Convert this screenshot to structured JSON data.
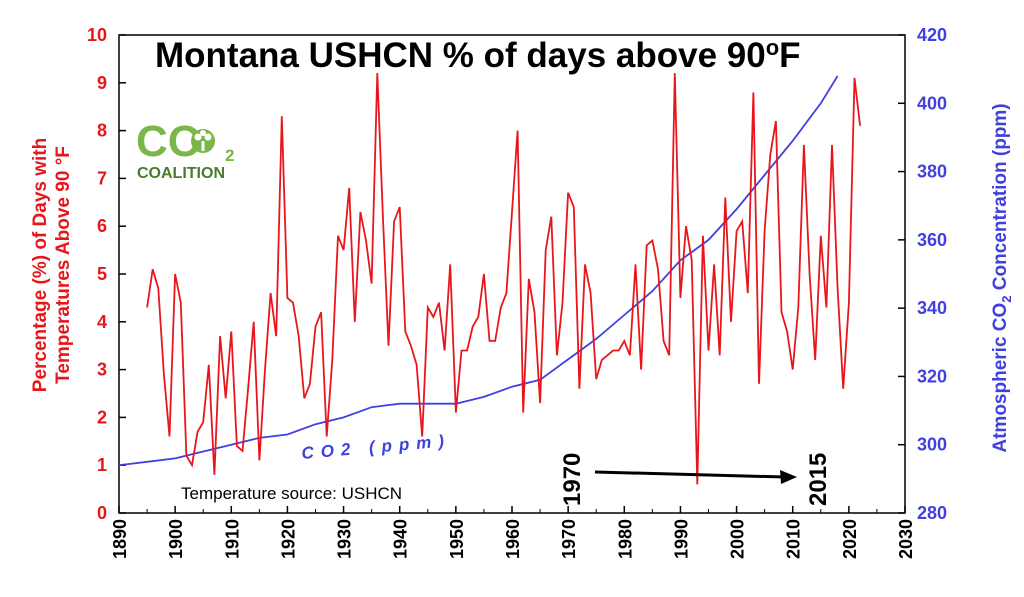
{
  "chart_data": {
    "type": "line",
    "title_main": "Montana USHCN % of days above 90",
    "title_suffix_o": "o",
    "title_suffix_f": "F",
    "x": {
      "min": 1890,
      "max": 2030,
      "ticks": [
        1890,
        1900,
        1910,
        1920,
        1930,
        1940,
        1950,
        1960,
        1970,
        1980,
        1990,
        2000,
        2010,
        2020,
        2030
      ],
      "tick_labels": [
        "1890",
        "1900",
        "1910",
        "1920",
        "1930",
        "1940",
        "1950",
        "1960",
        "1970",
        "1980",
        "1990",
        "2000",
        "2010",
        "2020",
        "2030"
      ]
    },
    "y_left": {
      "min": 0,
      "max": 10,
      "ticks": [
        0,
        1,
        2,
        3,
        4,
        5,
        6,
        7,
        8,
        9,
        10
      ],
      "tick_labels": [
        "0",
        "1",
        "2",
        "3",
        "4",
        "5",
        "6",
        "7",
        "8",
        "9",
        "10"
      ],
      "label_line1": "Percentage (%) of Days with",
      "label_line2": "Temperatures Above 90 °F",
      "color": "#e8161b"
    },
    "y_right": {
      "min": 280,
      "max": 420,
      "ticks": [
        280,
        300,
        320,
        340,
        360,
        380,
        400,
        420
      ],
      "tick_labels": [
        "280",
        "300",
        "320",
        "340",
        "360",
        "380",
        "400",
        "420"
      ],
      "label_pre": "Atmospheric CO",
      "label_sub": "2",
      "label_post": " Concentration (ppm)",
      "color": "#4040e0"
    },
    "grid": false,
    "series": [
      {
        "name": "% days above 90 °F",
        "color": "#e8161b",
        "axis": "left",
        "x": [
          1895,
          1896,
          1897,
          1898,
          1899,
          1900,
          1901,
          1902,
          1903,
          1904,
          1905,
          1906,
          1907,
          1908,
          1909,
          1910,
          1911,
          1912,
          1913,
          1914,
          1915,
          1916,
          1917,
          1918,
          1919,
          1920,
          1921,
          1922,
          1923,
          1924,
          1925,
          1926,
          1927,
          1928,
          1929,
          1930,
          1931,
          1932,
          1933,
          1934,
          1935,
          1936,
          1937,
          1938,
          1939,
          1940,
          1941,
          1942,
          1943,
          1944,
          1945,
          1946,
          1947,
          1948,
          1949,
          1950,
          1951,
          1952,
          1953,
          1954,
          1955,
          1956,
          1957,
          1958,
          1959,
          1960,
          1961,
          1962,
          1963,
          1964,
          1965,
          1966,
          1967,
          1968,
          1969,
          1970,
          1971,
          1972,
          1973,
          1974,
          1975,
          1976,
          1977,
          1978,
          1979,
          1980,
          1981,
          1982,
          1983,
          1984,
          1985,
          1986,
          1987,
          1988,
          1989,
          1990,
          1991,
          1992,
          1993,
          1994,
          1995,
          1996,
          1997,
          1998,
          1999,
          2000,
          2001,
          2002,
          2003,
          2004,
          2005,
          2006,
          2007,
          2008,
          2009,
          2010,
          2011,
          2012,
          2013,
          2014,
          2015,
          2016,
          2017,
          2018,
          2019,
          2020,
          2021,
          2022
        ],
        "values": [
          4.3,
          5.1,
          4.7,
          2.9,
          1.6,
          5.0,
          4.4,
          1.2,
          1.0,
          1.7,
          1.9,
          3.1,
          0.8,
          3.7,
          2.4,
          3.8,
          1.4,
          1.3,
          2.6,
          4.0,
          1.1,
          3.0,
          4.6,
          3.7,
          8.3,
          4.5,
          4.4,
          3.7,
          2.4,
          2.7,
          3.9,
          4.2,
          1.6,
          3.2,
          5.8,
          5.5,
          6.8,
          4.0,
          6.3,
          5.7,
          4.8,
          9.2,
          6.2,
          3.5,
          6.1,
          6.4,
          3.8,
          3.5,
          3.1,
          1.6,
          4.3,
          4.1,
          4.4,
          3.4,
          5.2,
          2.1,
          3.4,
          3.4,
          3.9,
          4.1,
          5.0,
          3.6,
          3.6,
          4.3,
          4.6,
          6.3,
          8.0,
          2.1,
          4.9,
          4.2,
          2.3,
          5.5,
          6.2,
          3.3,
          4.4,
          6.7,
          6.4,
          2.6,
          5.2,
          4.6,
          2.8,
          3.2,
          3.3,
          3.4,
          3.4,
          3.6,
          3.3,
          5.2,
          3.0,
          5.6,
          5.7,
          5.1,
          3.6,
          3.3,
          9.2,
          4.5,
          6.0,
          5.3,
          0.6,
          5.8,
          3.4,
          5.2,
          3.3,
          6.6,
          4.0,
          5.9,
          6.1,
          4.6,
          8.8,
          2.7,
          5.9,
          7.5,
          8.2,
          4.2,
          3.8,
          3.0,
          4.3,
          7.7,
          5.0,
          3.2,
          5.8,
          4.3,
          7.7,
          4.7,
          2.6,
          4.4,
          9.1,
          8.1
        ]
      },
      {
        "name": "CO2 (ppm)",
        "color": "#4040e0",
        "axis": "right",
        "x": [
          1890,
          1895,
          1900,
          1905,
          1910,
          1915,
          1920,
          1925,
          1930,
          1935,
          1940,
          1945,
          1950,
          1955,
          1960,
          1965,
          1970,
          1975,
          1980,
          1985,
          1990,
          1995,
          2000,
          2005,
          2010,
          2015,
          2018
        ],
        "values": [
          294,
          295,
          296,
          298,
          300,
          302,
          303,
          306,
          308,
          311,
          312,
          312,
          312,
          314,
          317,
          319,
          325,
          331,
          338,
          345,
          354,
          360,
          369,
          379,
          389,
          400,
          408
        ]
      }
    ],
    "annotations": {
      "co2_curve_label": "CO2 (ppm)",
      "source": "Temperature source: USHCN",
      "start_year": "1970",
      "end_year": "2015",
      "logo_text": "CO",
      "logo_subscript": "2",
      "logo_caption": "COALITION"
    }
  }
}
